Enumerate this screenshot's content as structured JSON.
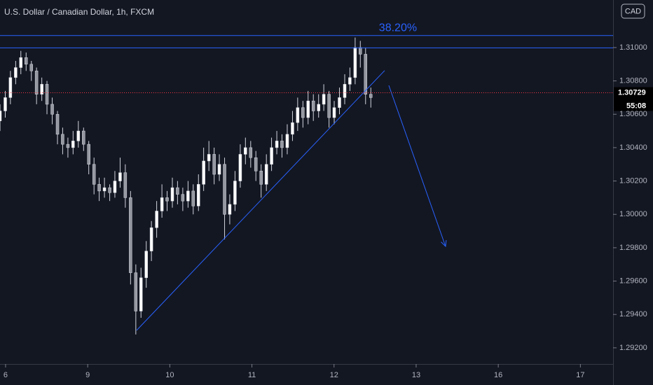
{
  "chart_data": {
    "type": "candlestick",
    "title": "U.S. Dollar / Canadian Dollar, 1h, FXCM",
    "currency": "CAD",
    "up_color": "#ffffff",
    "down_color": "#9598a1",
    "wick_color": "#d1d4dc",
    "xlim": [
      -0.068,
      7.398
    ],
    "xticks": [
      {
        "value": 0,
        "label": "6"
      },
      {
        "value": 1,
        "label": "9"
      },
      {
        "value": 2,
        "label": "10"
      },
      {
        "value": 3,
        "label": "11"
      },
      {
        "value": 4,
        "label": "12"
      },
      {
        "value": 5,
        "label": "13"
      },
      {
        "value": 6,
        "label": "16"
      },
      {
        "value": 7,
        "label": "17"
      }
    ],
    "ylim": [
      1.29103,
      1.31285
    ],
    "yticks": [
      {
        "value": 1.292,
        "label": "1.29200"
      },
      {
        "value": 1.294,
        "label": "1.29400"
      },
      {
        "value": 1.296,
        "label": "1.29600"
      },
      {
        "value": 1.298,
        "label": "1.29800"
      },
      {
        "value": 1.3,
        "label": "1.30000"
      },
      {
        "value": 1.302,
        "label": "1.30200"
      },
      {
        "value": 1.304,
        "label": "1.30400"
      },
      {
        "value": 1.306,
        "label": "1.30600"
      },
      {
        "value": 1.308,
        "label": "1.30800"
      },
      {
        "value": 1.31,
        "label": "1.31000"
      }
    ],
    "x": [
      -0.068,
      -0.004,
      0.059,
      0.123,
      0.186,
      0.25,
      0.314,
      0.377,
      0.441,
      0.504,
      0.568,
      0.632,
      0.695,
      0.759,
      0.822,
      0.886,
      0.95,
      1.013,
      1.077,
      1.14,
      1.204,
      1.268,
      1.331,
      1.395,
      1.458,
      1.522,
      1.586,
      1.649,
      1.713,
      1.776,
      1.84,
      1.904,
      1.967,
      2.031,
      2.094,
      2.158,
      2.222,
      2.285,
      2.349,
      2.412,
      2.476,
      2.54,
      2.603,
      2.667,
      2.73,
      2.794,
      2.858,
      2.921,
      2.985,
      3.048,
      3.112,
      3.176,
      3.239,
      3.303,
      3.366,
      3.43,
      3.494,
      3.557,
      3.621,
      3.684,
      3.748,
      3.812,
      3.875,
      3.939,
      4.002,
      4.066,
      4.13,
      4.193,
      4.257,
      4.32,
      4.384,
      4.448
    ],
    "open": [
      1.3056,
      1.3062,
      1.307,
      1.3082,
      1.3088,
      1.3094,
      1.309,
      1.3086,
      1.3072,
      1.3078,
      1.3066,
      1.306,
      1.3048,
      1.3042,
      1.304,
      1.3044,
      1.305,
      1.3042,
      1.303,
      1.3018,
      1.3014,
      1.3016,
      1.3013,
      1.302,
      1.3025,
      1.301,
      1.2965,
      1.2942,
      1.2962,
      1.2978,
      1.2992,
      1.3002,
      1.301,
      1.3008,
      1.3016,
      1.3012,
      1.3008,
      1.3014,
      1.3005,
      1.3018,
      1.3032,
      1.3036,
      1.3024,
      1.303,
      1.3,
      1.3006,
      1.302,
      1.3036,
      1.304,
      1.3034,
      1.3026,
      1.3018,
      1.303,
      1.304,
      1.3044,
      1.304,
      1.3048,
      1.3055,
      1.3064,
      1.3058,
      1.3068,
      1.3062,
      1.3066,
      1.3072,
      1.3058,
      1.3064,
      1.307,
      1.3078,
      1.3082,
      1.31,
      1.3096,
      1.3072
    ],
    "high": [
      1.3066,
      1.3074,
      1.3086,
      1.3092,
      1.3098,
      1.3097,
      1.3092,
      1.3088,
      1.3082,
      1.308,
      1.307,
      1.3062,
      1.3052,
      1.3046,
      1.305,
      1.3056,
      1.3052,
      1.3044,
      1.3034,
      1.3022,
      1.3022,
      1.3018,
      1.3026,
      1.3034,
      1.303,
      1.3014,
      1.297,
      1.2968,
      1.2984,
      1.2996,
      1.3008,
      1.3018,
      1.3014,
      1.3022,
      1.302,
      1.3016,
      1.302,
      1.3018,
      1.3024,
      1.304,
      1.3044,
      1.304,
      1.3036,
      1.3034,
      1.3012,
      1.3026,
      1.3042,
      1.3046,
      1.3044,
      1.3038,
      1.303,
      1.3036,
      1.3046,
      1.305,
      1.3048,
      1.3054,
      1.3062,
      1.307,
      1.3068,
      1.3074,
      1.3072,
      1.3072,
      1.3078,
      1.3074,
      1.3068,
      1.3076,
      1.3084,
      1.3088,
      1.3106,
      1.3104,
      1.31,
      1.3076
    ],
    "low": [
      1.305,
      1.3058,
      1.3066,
      1.3078,
      1.3084,
      1.3086,
      1.308,
      1.3066,
      1.3068,
      1.306,
      1.3054,
      1.3042,
      1.3036,
      1.3034,
      1.3036,
      1.304,
      1.3038,
      1.3024,
      1.3012,
      1.3008,
      1.301,
      1.3008,
      1.301,
      1.3016,
      1.3004,
      1.2958,
      1.2928,
      1.2938,
      1.2956,
      1.2972,
      1.2986,
      1.2998,
      1.3002,
      1.3004,
      1.3006,
      1.3002,
      1.3004,
      1.3,
      1.3002,
      1.3014,
      1.3026,
      1.3018,
      1.302,
      1.2985,
      1.2994,
      1.3002,
      1.3016,
      1.303,
      1.3028,
      1.302,
      1.301,
      1.3014,
      1.3026,
      1.3036,
      1.3034,
      1.3036,
      1.3044,
      1.305,
      1.3052,
      1.3054,
      1.3056,
      1.3058,
      1.3062,
      1.3052,
      1.3054,
      1.306,
      1.3066,
      1.3074,
      1.3078,
      1.3088,
      1.3066,
      1.3064
    ],
    "close": [
      1.3062,
      1.307,
      1.3082,
      1.3088,
      1.3094,
      1.309,
      1.3086,
      1.3072,
      1.3078,
      1.3066,
      1.306,
      1.3048,
      1.3042,
      1.304,
      1.3044,
      1.305,
      1.3042,
      1.303,
      1.3018,
      1.3014,
      1.3016,
      1.3013,
      1.302,
      1.3025,
      1.301,
      1.2965,
      1.2942,
      1.2962,
      1.2978,
      1.2992,
      1.3002,
      1.301,
      1.3008,
      1.3016,
      1.3012,
      1.3008,
      1.3014,
      1.3005,
      1.3018,
      1.3032,
      1.3036,
      1.3024,
      1.303,
      1.3,
      1.3006,
      1.302,
      1.3036,
      1.304,
      1.3034,
      1.3026,
      1.3018,
      1.303,
      1.304,
      1.3044,
      1.304,
      1.3048,
      1.3055,
      1.3064,
      1.3058,
      1.3068,
      1.3062,
      1.3066,
      1.3072,
      1.3058,
      1.3064,
      1.307,
      1.3078,
      1.3082,
      1.31,
      1.3096,
      1.3072,
      1.307
    ],
    "drawing_color": "#2962ff",
    "hlines": [
      1.31072,
      1.30998
    ],
    "fib_label": {
      "text": "38.20%",
      "x": 4.778,
      "y": 1.31117
    },
    "trendline": {
      "x": [
        1.596,
        4.616
      ],
      "y": [
        1.29305,
        1.30862
      ]
    },
    "arrow": {
      "x": [
        4.667,
        5.358
      ],
      "y": [
        1.30773,
        1.29808
      ]
    },
    "last_price": {
      "value": 1.30729,
      "label": "1.30729",
      "countdown": "55:08",
      "color": "#f23645"
    }
  }
}
